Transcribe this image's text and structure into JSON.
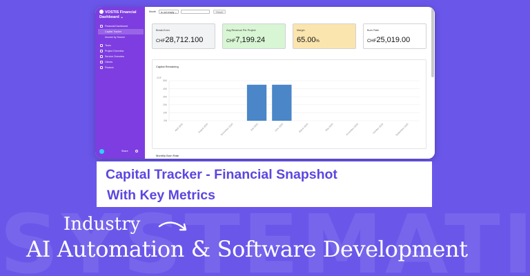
{
  "watermark": "SYSTEMATIC",
  "app": {
    "brand_line1": "VOSTIS Financial",
    "brand_line2": "Dashboard",
    "brand_chevron": "⌄",
    "nav": [
      {
        "label": "Financial Dashboard",
        "icon": "dashboard-icon"
      },
      {
        "label": "Capital Tracker",
        "active": true,
        "sub": true
      },
      {
        "label": "Income by Source",
        "sub": true
      },
      {
        "label": "Team",
        "icon": "team-icon"
      },
      {
        "label": "Project Overview",
        "icon": "project-icon"
      },
      {
        "label": "Service Overview",
        "icon": "service-icon"
      },
      {
        "label": "Clients",
        "icon": "clients-icon"
      },
      {
        "label": "Finance",
        "icon": "finance-icon"
      }
    ],
    "footer": {
      "share_label": "Share"
    },
    "filter": {
      "month_label": "Month",
      "month_value": "is not empty",
      "reset_label": "Reset"
    },
    "cards": [
      {
        "label": "Break-Even",
        "currency": "CHF",
        "value": "28,712.100",
        "unit": "",
        "bg": "#f2f3f5"
      },
      {
        "label": "Avg Revenue Per Project",
        "currency": "CHF",
        "value": "7,199.24",
        "unit": "",
        "bg": "#d8f5d4"
      },
      {
        "label": "Margin",
        "currency": "",
        "value": "65.00",
        "unit": "%",
        "bg": "#fbe5ae"
      },
      {
        "label": "Burn Rate",
        "currency": "CHF",
        "value": "25,019.00",
        "unit": "",
        "bg": "#ffffff"
      }
    ],
    "capital_panel_title": "Capital Remaining",
    "burn_panel_title": "Monthly Burn Rate"
  },
  "chart_data": {
    "type": "bar",
    "y_unit_label": "CHF",
    "categories": [
      "April 2025",
      "August 2025",
      "December 2025",
      "July 2025",
      "June 2025",
      "March 2025",
      "May 2025",
      "November 2025",
      "October 2025",
      "September 2025"
    ],
    "values": [
      0,
      0,
      0,
      45000,
      45000,
      0,
      0,
      0,
      0,
      0
    ],
    "ylim": [
      0,
      50000
    ],
    "yticks": [
      0,
      10000,
      20000,
      30000,
      40000,
      50000
    ],
    "ytick_labels": [
      "0M",
      "10K",
      "20K",
      "30K",
      "40K",
      "50K"
    ],
    "grid": true,
    "bar_color": "#4a86c8"
  },
  "caption": {
    "line1": "Capital Tracker - Financial Snapshot",
    "line2": "With Key Metrics"
  },
  "industry_label": "Industry",
  "industry_title": "AI Automation & Software Development",
  "colors": {
    "background": "#6a57ea",
    "sidebar": "#7e3de0",
    "caption_text": "#5b46e0"
  }
}
